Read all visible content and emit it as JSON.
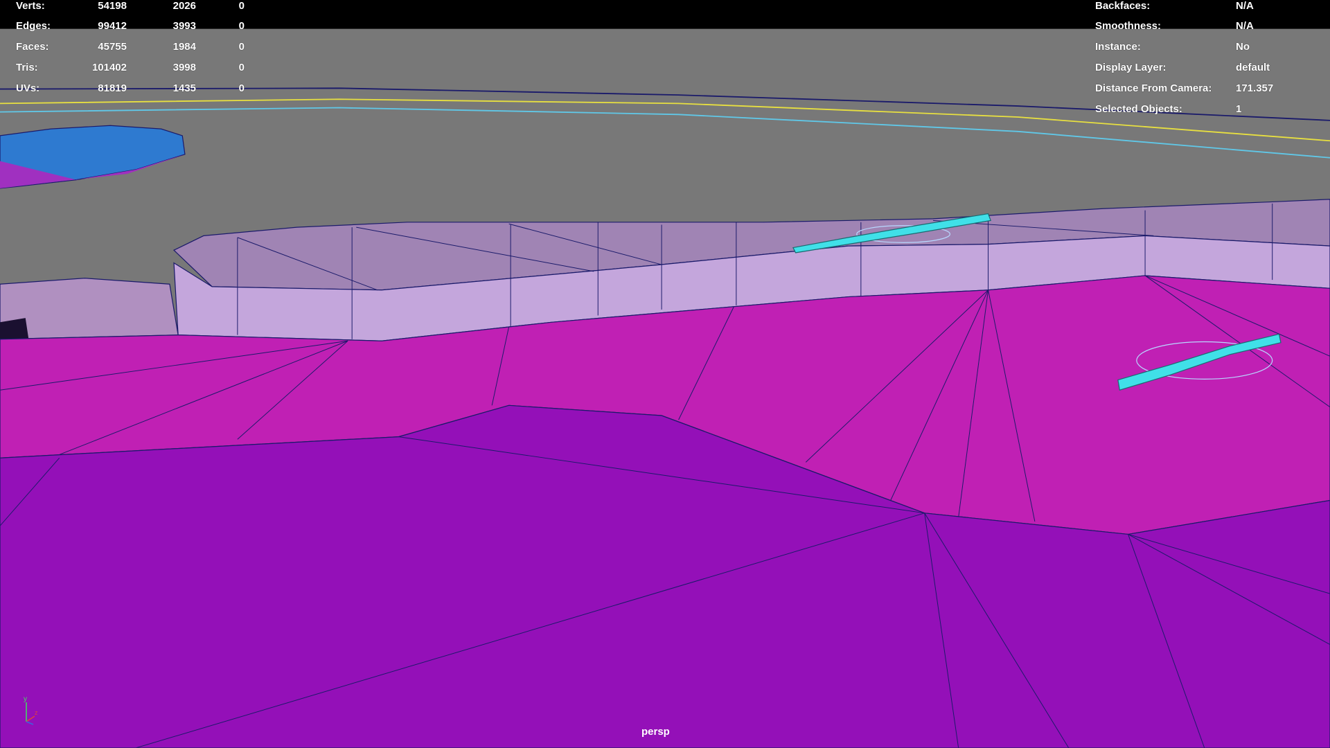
{
  "poly_count": {
    "rows": [
      {
        "label": "Verts:",
        "values": [
          "54198",
          "2026",
          "0"
        ]
      },
      {
        "label": "Edges:",
        "values": [
          "99412",
          "3993",
          "0"
        ]
      },
      {
        "label": "Faces:",
        "values": [
          "45755",
          "1984",
          "0"
        ]
      },
      {
        "label": "Tris:",
        "values": [
          "101402",
          "3998",
          "0"
        ]
      },
      {
        "label": "UVs:",
        "values": [
          "81819",
          "1435",
          "0"
        ]
      }
    ]
  },
  "object_info": {
    "rows": [
      {
        "label": "Backfaces:",
        "value": "N/A"
      },
      {
        "label": "Smoothness:",
        "value": "N/A"
      },
      {
        "label": "Instance:",
        "value": "No"
      },
      {
        "label": "Display Layer:",
        "value": "default"
      },
      {
        "label": "Distance From Camera:",
        "value": "171.357"
      },
      {
        "label": "Selected Objects:",
        "value": "1"
      }
    ]
  },
  "camera_label": "persp",
  "axis": {
    "y": "y",
    "z": "z"
  },
  "colors": {
    "background": "#787878",
    "plateau_top": "#a084b4",
    "plateau_face": "#c4a6dc",
    "slope": "#c020b4",
    "ground": "#9410b8",
    "selection": "#40e0e8",
    "wire": "#1a1a6a"
  }
}
